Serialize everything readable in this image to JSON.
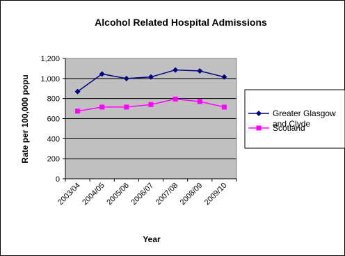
{
  "chart_data": {
    "type": "line",
    "title": "Alcohol Related Hospital Admissions",
    "xlabel": "Year",
    "ylabel": "Rate per 100,000 popu",
    "categories": [
      "2003/04",
      "2004/05",
      "2005/06",
      "2006/07",
      "2007/08",
      "2008/09",
      "2009/10"
    ],
    "ylim": [
      0,
      1200
    ],
    "yticks": [
      0,
      200,
      400,
      600,
      800,
      1000,
      1200
    ],
    "ytick_labels": [
      "0",
      "200",
      "400",
      "600",
      "800",
      "1,000",
      "1,200"
    ],
    "grid": true,
    "legend_position": "right",
    "plot_background": "#c0c0c0",
    "series": [
      {
        "name": "Greater Glasgow and Clyde",
        "legend_lines": [
          "Greater Glasgow",
          "and Clyde"
        ],
        "values": [
          870,
          1045,
          1000,
          1015,
          1085,
          1075,
          1015
        ],
        "color": "#000080",
        "marker": "diamond"
      },
      {
        "name": "Scotland",
        "legend_lines": [
          "Scotland"
        ],
        "values": [
          675,
          715,
          715,
          740,
          795,
          770,
          715
        ],
        "color": "#ff00ff",
        "marker": "square"
      }
    ]
  }
}
